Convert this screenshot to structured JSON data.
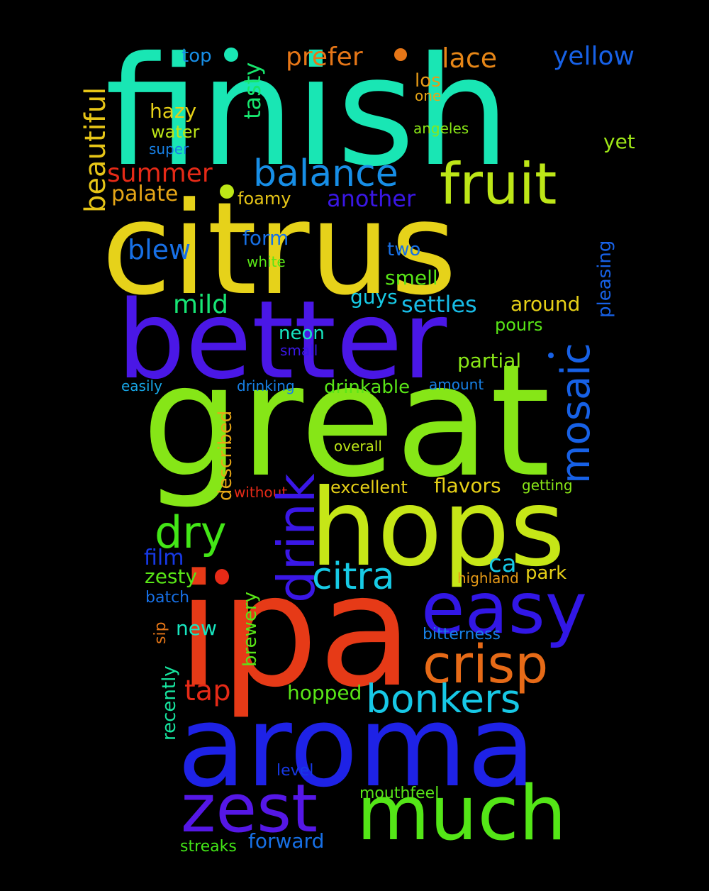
{
  "words": [
    {
      "key": "finish",
      "text": "finish",
      "color": "#19E6B4"
    },
    {
      "key": "citrus",
      "text": "citrus",
      "color": "#E6D21A"
    },
    {
      "key": "better",
      "text": "better",
      "color": "#4A17E6"
    },
    {
      "key": "great",
      "text": "great",
      "color": "#86E617"
    },
    {
      "key": "hops",
      "text": "hops",
      "color": "#C6E617"
    },
    {
      "key": "ipa",
      "text": "ipa",
      "color": "#E63A17"
    },
    {
      "key": "aroma",
      "text": "aroma",
      "color": "#1E22E6"
    },
    {
      "key": "much",
      "text": "much",
      "color": "#54E617"
    },
    {
      "key": "zest",
      "text": "zest",
      "color": "#5517E6"
    },
    {
      "key": "easy",
      "text": "easy",
      "color": "#3217E6"
    },
    {
      "key": "crisp",
      "text": "crisp",
      "color": "#E66A17"
    },
    {
      "key": "bonkers",
      "text": "bonkers",
      "color": "#17C8E6"
    },
    {
      "key": "fruit",
      "text": "fruit",
      "color": "#BDE617"
    },
    {
      "key": "balance",
      "text": "balance",
      "color": "#178EE6"
    },
    {
      "key": "drink",
      "text": "drink",
      "color": "#3A17E6"
    },
    {
      "key": "mosaic",
      "text": "mosaic",
      "color": "#1761E6"
    },
    {
      "key": "dry",
      "text": "dry",
      "color": "#43E617"
    },
    {
      "key": "citra",
      "text": "citra",
      "color": "#17CBE6"
    },
    {
      "key": "prefer",
      "text": "prefer",
      "color": "#E67617"
    },
    {
      "key": "lace",
      "text": "lace",
      "color": "#E68617"
    },
    {
      "key": "yellow",
      "text": "yellow",
      "color": "#1761E6"
    },
    {
      "key": "beautiful",
      "text": "beautiful",
      "color": "#E6C517"
    },
    {
      "key": "tasty",
      "text": "tasty",
      "color": "#17E66E"
    },
    {
      "key": "top",
      "text": "top",
      "color": "#178EE6"
    },
    {
      "key": "summer",
      "text": "summer",
      "color": "#E62A17"
    },
    {
      "key": "palate",
      "text": "palate",
      "color": "#E6A617"
    },
    {
      "key": "another",
      "text": "another",
      "color": "#3A17E6"
    },
    {
      "key": "foamy",
      "text": "foamy",
      "color": "#E6C517"
    },
    {
      "key": "blew",
      "text": "blew",
      "color": "#1770E6"
    },
    {
      "key": "form",
      "text": "form",
      "color": "#1770E6"
    },
    {
      "key": "two",
      "text": "two",
      "color": "#1770E6"
    },
    {
      "key": "smell",
      "text": "smell",
      "color": "#59E617"
    },
    {
      "key": "mild",
      "text": "mild",
      "color": "#17E675"
    },
    {
      "key": "guys",
      "text": "guys",
      "color": "#17CBE6"
    },
    {
      "key": "settles",
      "text": "settles",
      "color": "#17BBE6"
    },
    {
      "key": "around",
      "text": "around",
      "color": "#E6D017"
    },
    {
      "key": "pours",
      "text": "pours",
      "color": "#59E617"
    },
    {
      "key": "neon",
      "text": "neon",
      "color": "#17E6C0"
    },
    {
      "key": "small",
      "text": "small",
      "color": "#3A17E6"
    },
    {
      "key": "partial",
      "text": "partial",
      "color": "#89E617"
    },
    {
      "key": "pleasing",
      "text": "pleasing",
      "color": "#1761E6"
    },
    {
      "key": "hazy",
      "text": "hazy",
      "color": "#E6D017"
    },
    {
      "key": "water",
      "text": "water",
      "color": "#BDE617"
    },
    {
      "key": "super",
      "text": "super",
      "color": "#1780E6"
    },
    {
      "key": "los",
      "text": "los",
      "color": "#E69A17"
    },
    {
      "key": "one",
      "text": "one",
      "color": "#E6A617"
    },
    {
      "key": "angeles",
      "text": "angeles",
      "color": "#89E617"
    },
    {
      "key": "yet",
      "text": "yet",
      "color": "#9EE617"
    },
    {
      "key": "white",
      "text": "white",
      "color": "#59E617"
    },
    {
      "key": "easily",
      "text": "easily",
      "color": "#17A6E6"
    },
    {
      "key": "drinking",
      "text": "drinking",
      "color": "#1780E6"
    },
    {
      "key": "drinkable",
      "text": "drinkable",
      "color": "#59E617"
    },
    {
      "key": "amount",
      "text": "amount",
      "color": "#1780E6"
    },
    {
      "key": "described",
      "text": "described",
      "color": "#E6A617"
    },
    {
      "key": "overall",
      "text": "overall",
      "color": "#BDE617"
    },
    {
      "key": "without",
      "text": "without",
      "color": "#E62A17"
    },
    {
      "key": "excellent",
      "text": "excellent",
      "color": "#E6D017"
    },
    {
      "key": "flavors",
      "text": "flavors",
      "color": "#E6D017"
    },
    {
      "key": "getting",
      "text": "getting",
      "color": "#89E617"
    },
    {
      "key": "film",
      "text": "film",
      "color": "#1739E6"
    },
    {
      "key": "ca",
      "text": "ca",
      "color": "#17C8E6"
    },
    {
      "key": "park",
      "text": "park",
      "color": "#E6D017"
    },
    {
      "key": "highland",
      "text": "highland",
      "color": "#E69A17"
    },
    {
      "key": "zesty",
      "text": "zesty",
      "color": "#59E617"
    },
    {
      "key": "batch",
      "text": "batch",
      "color": "#1770E6"
    },
    {
      "key": "brewery",
      "text": "brewery",
      "color": "#59E617"
    },
    {
      "key": "sip",
      "text": "sip",
      "color": "#E67617"
    },
    {
      "key": "new",
      "text": "new",
      "color": "#17E6C0"
    },
    {
      "key": "bitterness",
      "text": "bitterness",
      "color": "#1780E6"
    },
    {
      "key": "recently",
      "text": "recently",
      "color": "#17E6A0"
    },
    {
      "key": "tap",
      "text": "tap",
      "color": "#E62A17"
    },
    {
      "key": "hopped",
      "text": "hopped",
      "color": "#59E617"
    },
    {
      "key": "level",
      "text": "level",
      "color": "#1739E6"
    },
    {
      "key": "mouthfeel",
      "text": "mouthfeel",
      "color": "#59E617"
    },
    {
      "key": "streaks",
      "text": "streaks",
      "color": "#43E617"
    },
    {
      "key": "forward",
      "text": "forward",
      "color": "#1770E6"
    }
  ]
}
